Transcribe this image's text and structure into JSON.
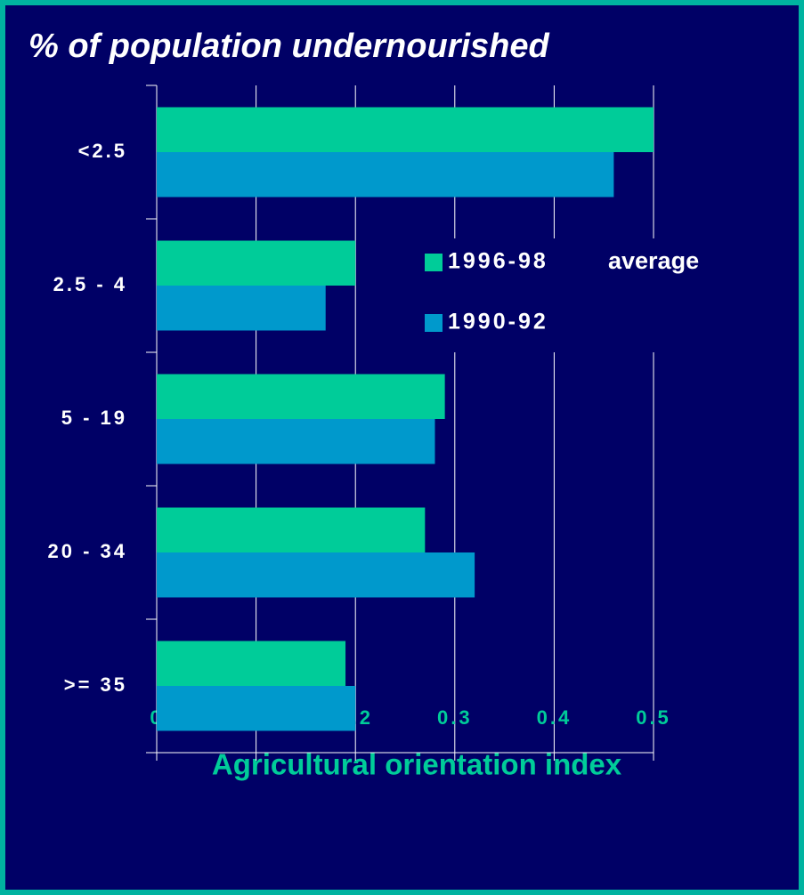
{
  "chart_data": {
    "type": "bar",
    "orientation": "horizontal",
    "title": "% of population undernourished",
    "x_label": "Agricultural orientation index",
    "categories": [
      "<2.5",
      "2.5 - 4",
      "5 - 19",
      "20 - 34",
      ">= 35"
    ],
    "series": [
      {
        "name": "1996-98",
        "color": "#00cc99",
        "values": [
          0.5,
          0.2,
          0.29,
          0.27,
          0.19
        ]
      },
      {
        "name": "1990-92",
        "color": "#0099cc",
        "values": [
          0.46,
          0.17,
          0.28,
          0.32,
          0.2
        ]
      }
    ],
    "legend_annotation": "average",
    "xlim": [
      0,
      0.5
    ],
    "xticks": [
      0,
      0.1,
      0.2,
      0.3,
      0.4,
      0.5
    ],
    "grid": true
  }
}
